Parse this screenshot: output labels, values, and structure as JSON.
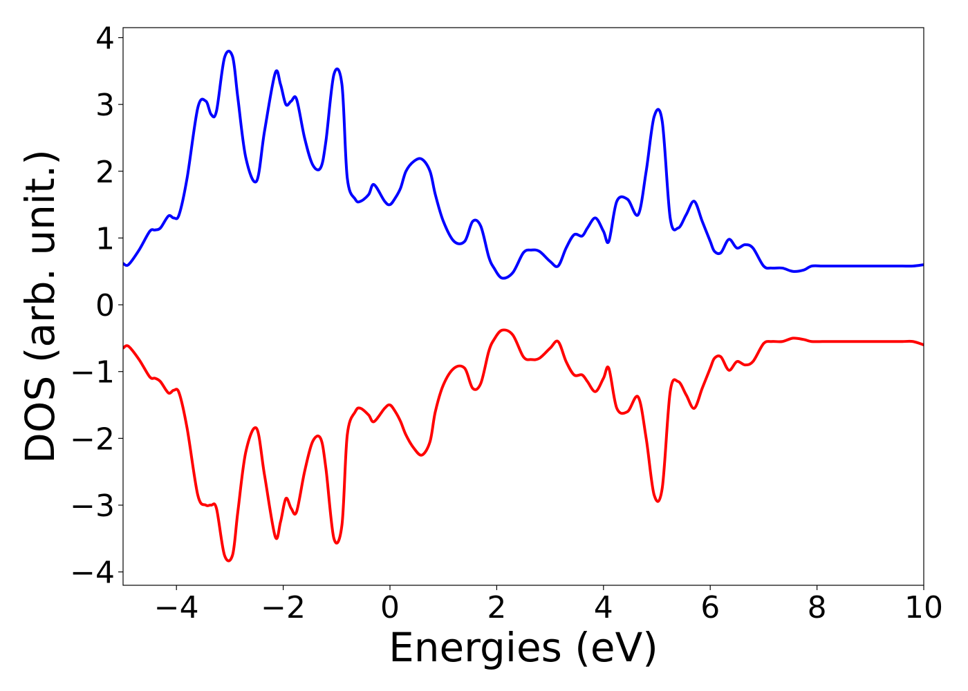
{
  "chart_data": {
    "type": "line",
    "title": "",
    "xlabel": "Energies (eV)",
    "ylabel": "DOS (arb. unit.)",
    "xlim": [
      -5,
      10
    ],
    "ylim": [
      -4.2,
      4.15
    ],
    "xticks": [
      -4,
      -2,
      0,
      2,
      4,
      6,
      8,
      10
    ],
    "yticks": [
      -4,
      -3,
      -2,
      -1,
      0,
      1,
      2,
      3,
      4
    ],
    "xtick_labels": [
      "−4",
      "−2",
      "0",
      "2",
      "4",
      "6",
      "8",
      "10"
    ],
    "ytick_labels": [
      "−4",
      "−3",
      "−2",
      "−1",
      "0",
      "1",
      "2",
      "3",
      "4"
    ],
    "grid": false,
    "legend": false,
    "series": [
      {
        "color": "#0000ff",
        "x": [
          -5.0,
          -4.9,
          -4.7,
          -4.5,
          -4.4,
          -4.3,
          -4.15,
          -4.05,
          -3.95,
          -3.8,
          -3.6,
          -3.45,
          -3.35,
          -3.25,
          -3.1,
          -2.95,
          -2.85,
          -2.7,
          -2.5,
          -2.35,
          -2.15,
          -2.05,
          -1.95,
          -1.85,
          -1.75,
          -1.6,
          -1.45,
          -1.3,
          -1.2,
          -1.05,
          -0.9,
          -0.8,
          -0.65,
          -0.55,
          -0.4,
          -0.3,
          -0.1,
          0.0,
          0.1,
          0.2,
          0.3,
          0.45,
          0.6,
          0.75,
          0.85,
          1.0,
          1.2,
          1.4,
          1.55,
          1.7,
          1.85,
          1.95,
          2.1,
          2.3,
          2.5,
          2.65,
          2.8,
          3.0,
          3.15,
          3.3,
          3.45,
          3.6,
          3.7,
          3.85,
          4.0,
          4.1,
          4.25,
          4.45,
          4.65,
          4.8,
          4.95,
          5.1,
          5.25,
          5.4,
          5.55,
          5.7,
          5.85,
          6.0,
          6.08,
          6.2,
          6.35,
          6.5,
          6.65,
          6.8,
          7.0,
          7.15,
          7.35,
          7.55,
          7.75,
          7.9,
          8.1,
          8.2,
          8.35,
          8.45,
          8.6,
          8.75,
          8.9,
          9.05,
          9.2,
          9.4,
          9.6,
          9.8,
          10.0
        ],
        "y": [
          0.62,
          0.6,
          0.82,
          1.1,
          1.12,
          1.15,
          1.33,
          1.3,
          1.35,
          1.9,
          2.95,
          3.05,
          2.85,
          2.9,
          3.7,
          3.72,
          3.1,
          2.2,
          1.85,
          2.6,
          3.47,
          3.3,
          3.0,
          3.05,
          3.08,
          2.5,
          2.1,
          2.05,
          2.45,
          3.45,
          3.3,
          1.9,
          1.58,
          1.55,
          1.65,
          1.8,
          1.55,
          1.5,
          1.6,
          1.75,
          2.0,
          2.15,
          2.18,
          2.0,
          1.65,
          1.25,
          0.95,
          0.95,
          1.25,
          1.18,
          0.72,
          0.55,
          0.4,
          0.48,
          0.78,
          0.82,
          0.8,
          0.65,
          0.58,
          0.85,
          1.05,
          1.03,
          1.15,
          1.3,
          1.1,
          0.95,
          1.55,
          1.58,
          1.35,
          2.0,
          2.82,
          2.75,
          1.3,
          1.15,
          1.35,
          1.55,
          1.25,
          0.95,
          0.8,
          0.78,
          0.98,
          0.85,
          0.9,
          0.85,
          0.58,
          0.55,
          0.55,
          0.5,
          0.52,
          0.58,
          0.58,
          0.58,
          0.58,
          0.58,
          0.58,
          0.58,
          0.58,
          0.58,
          0.58,
          0.58,
          0.58,
          0.58,
          0.6
        ]
      },
      {
        "color": "#ff0000",
        "x": [
          -5.0,
          -4.9,
          -4.7,
          -4.5,
          -4.4,
          -4.3,
          -4.15,
          -4.05,
          -3.95,
          -3.8,
          -3.6,
          -3.45,
          -3.35,
          -3.25,
          -3.1,
          -2.95,
          -2.85,
          -2.7,
          -2.5,
          -2.35,
          -2.15,
          -2.05,
          -1.95,
          -1.85,
          -1.75,
          -1.6,
          -1.45,
          -1.3,
          -1.2,
          -1.05,
          -0.9,
          -0.8,
          -0.65,
          -0.55,
          -0.4,
          -0.3,
          -0.1,
          0.0,
          0.1,
          0.2,
          0.3,
          0.45,
          0.6,
          0.75,
          0.85,
          1.0,
          1.2,
          1.4,
          1.55,
          1.7,
          1.85,
          1.95,
          2.1,
          2.3,
          2.5,
          2.65,
          2.8,
          3.0,
          3.15,
          3.3,
          3.45,
          3.6,
          3.7,
          3.85,
          4.0,
          4.1,
          4.25,
          4.45,
          4.65,
          4.8,
          4.95,
          5.1,
          5.25,
          5.4,
          5.55,
          5.7,
          5.85,
          6.0,
          6.08,
          6.2,
          6.35,
          6.5,
          6.65,
          6.8,
          7.0,
          7.15,
          7.35,
          7.55,
          7.75,
          7.9,
          8.1,
          8.2,
          8.35,
          8.45,
          8.6,
          8.75,
          8.9,
          9.05,
          9.2,
          9.4,
          9.6,
          9.8,
          10.0
        ],
        "y": [
          -0.65,
          -0.62,
          -0.82,
          -1.08,
          -1.1,
          -1.15,
          -1.32,
          -1.28,
          -1.32,
          -1.85,
          -2.85,
          -3.0,
          -3.0,
          -3.05,
          -3.75,
          -3.75,
          -3.1,
          -2.2,
          -1.85,
          -2.55,
          -3.47,
          -3.25,
          -2.9,
          -3.05,
          -3.1,
          -2.5,
          -2.05,
          -2.0,
          -2.45,
          -3.5,
          -3.3,
          -1.95,
          -1.6,
          -1.55,
          -1.65,
          -1.75,
          -1.55,
          -1.5,
          -1.6,
          -1.75,
          -1.95,
          -2.15,
          -2.25,
          -2.05,
          -1.6,
          -1.2,
          -0.95,
          -0.95,
          -1.25,
          -1.18,
          -0.7,
          -0.52,
          -0.38,
          -0.45,
          -0.78,
          -0.82,
          -0.8,
          -0.65,
          -0.55,
          -0.85,
          -1.05,
          -1.05,
          -1.15,
          -1.3,
          -1.1,
          -0.95,
          -1.55,
          -1.6,
          -1.38,
          -2.0,
          -2.85,
          -2.75,
          -1.3,
          -1.15,
          -1.35,
          -1.55,
          -1.25,
          -0.95,
          -0.8,
          -0.78,
          -0.98,
          -0.85,
          -0.9,
          -0.85,
          -0.58,
          -0.55,
          -0.55,
          -0.5,
          -0.52,
          -0.55,
          -0.55,
          -0.55,
          -0.55,
          -0.55,
          -0.55,
          -0.55,
          -0.55,
          -0.55,
          -0.55,
          -0.55,
          -0.55,
          -0.55,
          -0.6
        ]
      }
    ]
  }
}
